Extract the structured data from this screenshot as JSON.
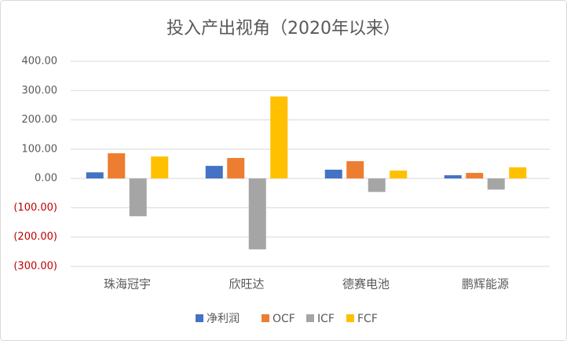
{
  "chart_data": {
    "type": "bar",
    "title": "投入产出视角（2020年以来）",
    "categories": [
      "珠海冠宇",
      "欣旺达",
      "德赛电池",
      "鹏辉能源"
    ],
    "series": [
      {
        "name": "净利润",
        "color": "#4472c4",
        "values": [
          21,
          43,
          30,
          11
        ]
      },
      {
        "name": "OCF",
        "color": "#ed7d31",
        "values": [
          86,
          70,
          59,
          19
        ]
      },
      {
        "name": "ICF",
        "color": "#a5a5a5",
        "values": [
          -129,
          -242,
          -46,
          -38
        ]
      },
      {
        "name": "FCF",
        "color": "#ffc000",
        "values": [
          75,
          280,
          27,
          38
        ]
      }
    ],
    "ylim": [
      -300,
      400
    ],
    "yticks": [
      {
        "value": 400,
        "label": "400.00"
      },
      {
        "value": 300,
        "label": "300.00"
      },
      {
        "value": 200,
        "label": "200.00"
      },
      {
        "value": 100,
        "label": "100.00"
      },
      {
        "value": 0,
        "label": "0.00"
      },
      {
        "value": -100,
        "label": "(100.00)"
      },
      {
        "value": -200,
        "label": "(200.00)"
      },
      {
        "value": -300,
        "label": "(300.00)"
      }
    ],
    "negative_tick_color": "#c00000",
    "grid": true,
    "legend": "bottom"
  }
}
